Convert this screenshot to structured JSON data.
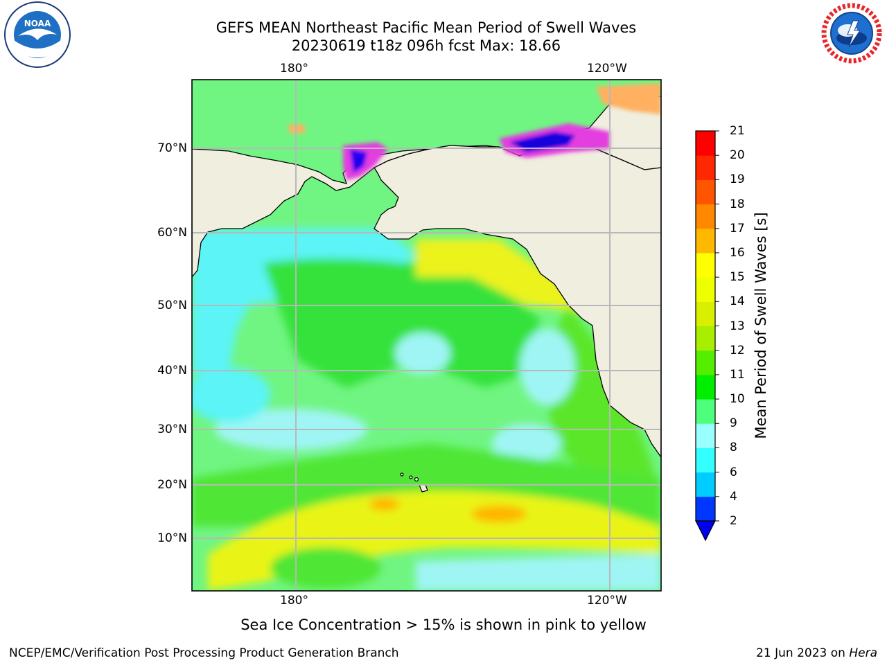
{
  "title": {
    "line1": "GEFS MEAN Northeast Pacific Mean Period of Swell Waves",
    "line2": "20230619 t18z 096h fcst   Max: 18.66"
  },
  "axes": {
    "lon_top": [
      "180°",
      "120°W"
    ],
    "lon_bottom": [
      "180°",
      "120°W"
    ],
    "lat": [
      "70°N",
      "60°N",
      "50°N",
      "40°N",
      "30°N",
      "20°N",
      "10°N"
    ]
  },
  "colorbar": {
    "label": "Mean Period of Swell Waves [s]",
    "ticks": [
      "2",
      "4",
      "6",
      "8",
      "9",
      "10",
      "11",
      "12",
      "13",
      "14",
      "15",
      "16",
      "17",
      "18",
      "19",
      "20",
      "21"
    ],
    "colors": [
      "#0037ff",
      "#00ccff",
      "#33ffff",
      "#99ffff",
      "#4dff7a",
      "#00ee00",
      "#55ee00",
      "#a8ee00",
      "#d8f000",
      "#eeff00",
      "#ffff00",
      "#ffb800",
      "#ff8800",
      "#ff5500",
      "#ff2800",
      "#ff0000"
    ],
    "extend_color": "#0000ee"
  },
  "map": {
    "ocean_base": "#7fff8f",
    "land_color": "#efeedf"
  },
  "footnote": "Sea Ice Concentration > 15% is shown in pink to yellow",
  "credit": {
    "left": "NCEP/EMC/Verification Post Processing Product Generation Branch",
    "date": "21 Jun 2023 on",
    "machine": "Hera"
  },
  "logos": {
    "noaa": "NOAA",
    "nws": "NATIONAL WEATHER SERVICE"
  }
}
